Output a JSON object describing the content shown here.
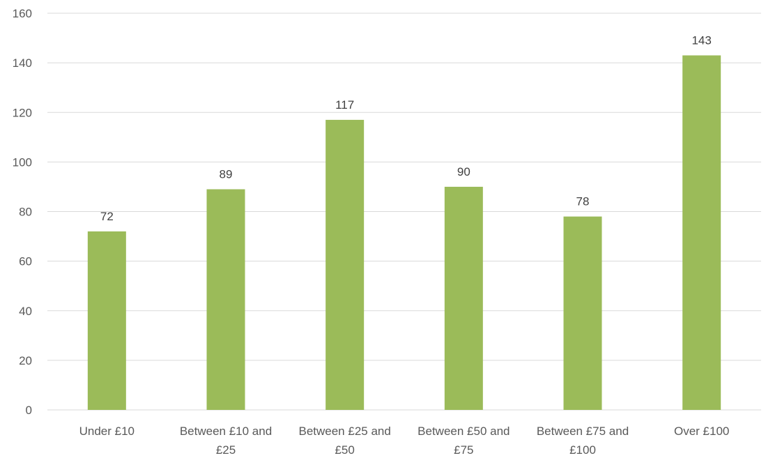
{
  "chart_data": {
    "type": "bar",
    "categories": [
      "Under £10",
      "Between £10 and £25",
      "Between £25 and £50",
      "Between £50 and £75",
      "Between £75 and £100",
      "Over £100"
    ],
    "category_lines": [
      [
        "Under £10"
      ],
      [
        "Between £10 and",
        "£25"
      ],
      [
        "Between £25 and",
        "£50"
      ],
      [
        "Between £50 and",
        "£75"
      ],
      [
        "Between £75 and",
        "£100"
      ],
      [
        "Over £100"
      ]
    ],
    "values": [
      72,
      89,
      117,
      90,
      78,
      143
    ],
    "title": "",
    "xlabel": "",
    "ylabel": "",
    "ylim": [
      0,
      160
    ],
    "yticks": [
      0,
      20,
      40,
      60,
      80,
      100,
      120,
      140,
      160
    ],
    "grid": true,
    "data_labels": true,
    "bar_color": "#9bbb59",
    "legend": "none"
  }
}
